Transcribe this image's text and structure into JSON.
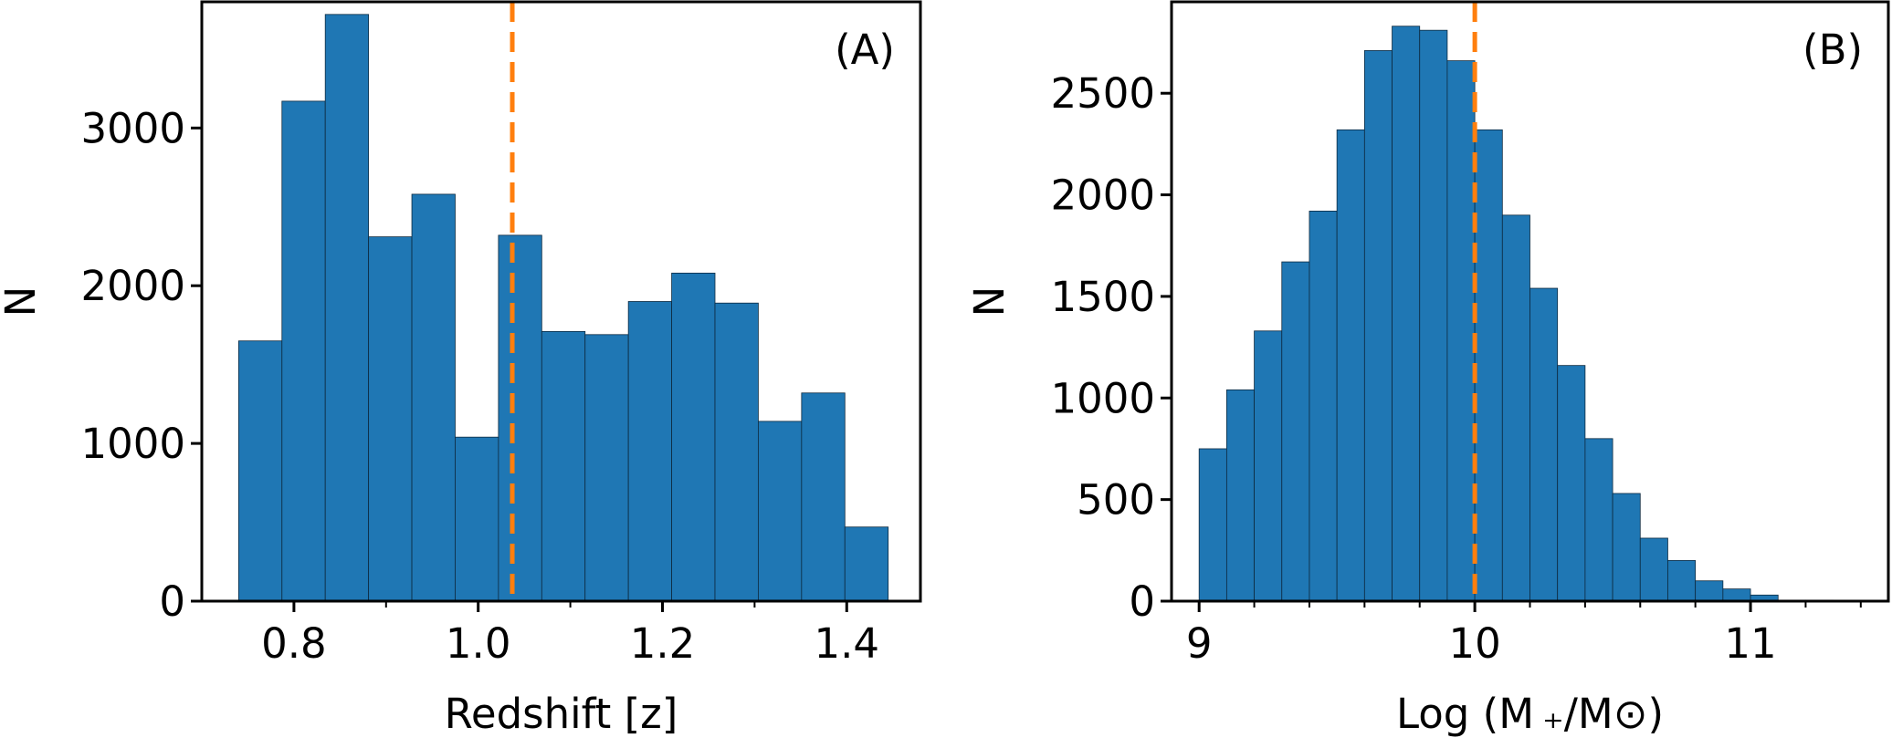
{
  "chart_data": [
    {
      "type": "bar",
      "panel_label": "(A)",
      "xlabel": "Redshift [z]",
      "ylabel": "N",
      "xlim": [
        0.7,
        1.48
      ],
      "ylim": [
        0,
        3800
      ],
      "x_ticks": [
        0.8,
        1.0,
        1.2,
        1.4
      ],
      "x_tick_labels": [
        "0.8",
        "1.0",
        "1.2",
        "1.4"
      ],
      "x_minor_ticks": [
        0.9,
        1.1,
        1.3
      ],
      "y_ticks": [
        0,
        1000,
        2000,
        3000
      ],
      "y_tick_labels": [
        "0",
        "1000",
        "2000",
        "3000"
      ],
      "bin_edges": [
        0.74,
        0.787,
        0.834,
        0.881,
        0.928,
        0.975,
        1.022,
        1.069,
        1.116,
        1.163,
        1.21,
        1.257,
        1.304,
        1.351,
        1.398,
        1.445
      ],
      "values": [
        1650,
        3170,
        3720,
        2310,
        2580,
        1040,
        2320,
        1710,
        1690,
        1900,
        2080,
        1890,
        1140,
        1320,
        470
      ],
      "bar_color": "#1f77b4",
      "reference_line": {
        "x": 1.037,
        "color": "#ff7f0e",
        "style": "dashed"
      }
    },
    {
      "type": "bar",
      "panel_label": "(B)",
      "xlabel": "Log (M ₊/M⊙)",
      "ylabel": "N",
      "xlim": [
        8.9,
        11.5
      ],
      "ylim": [
        0,
        2950
      ],
      "x_ticks": [
        9,
        10,
        11
      ],
      "x_tick_labels": [
        "9",
        "10",
        "11"
      ],
      "x_minor_ticks": [
        9.2,
        9.4,
        9.6,
        9.8,
        10.2,
        10.4,
        10.6,
        10.8,
        11.2,
        11.4
      ],
      "y_ticks": [
        0,
        500,
        1000,
        1500,
        2000,
        2500
      ],
      "y_tick_labels": [
        "0",
        "500",
        "1000",
        "1500",
        "2000",
        "2500"
      ],
      "bin_edges": [
        9.0,
        9.1,
        9.2,
        9.3,
        9.4,
        9.5,
        9.6,
        9.7,
        9.8,
        9.9,
        10.0,
        10.1,
        10.2,
        10.3,
        10.4,
        10.5,
        10.6,
        10.7,
        10.8,
        10.9,
        11.0,
        11.1,
        11.2,
        11.3
      ],
      "values": [
        750,
        1040,
        1330,
        1670,
        1920,
        2320,
        2710,
        2830,
        2810,
        2660,
        2320,
        1900,
        1540,
        1160,
        800,
        530,
        310,
        200,
        100,
        60,
        30,
        5,
        5
      ],
      "bar_color": "#1f77b4",
      "reference_line": {
        "x": 10.0,
        "color": "#ff7f0e",
        "style": "dashed"
      }
    }
  ]
}
